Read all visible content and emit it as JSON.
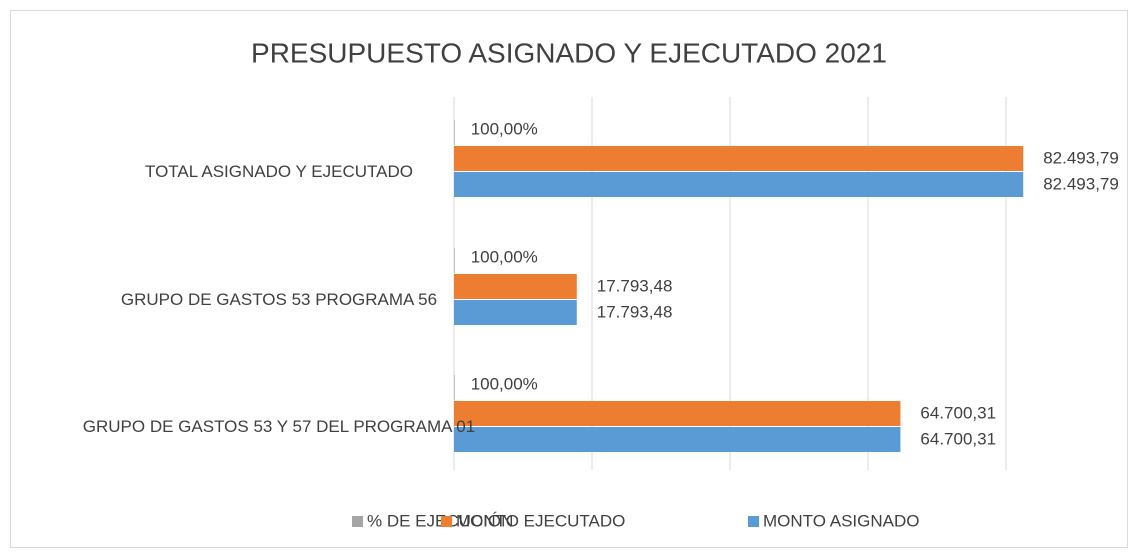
{
  "chart_data": {
    "type": "hbar",
    "title": "PRESUPUESTO ASIGNADO Y EJECUTADO 2021",
    "categories": [
      "TOTAL ASIGNADO Y EJECUTADO",
      "GRUPO DE GASTOS 53 PROGRAMA 56",
      "GRUPO DE GASTOS 53 Y 57 DEL PROGRAMA 01"
    ],
    "series": [
      {
        "name": "% DE EJECUCIÓN",
        "color": "#a5a5a5",
        "values": [
          100,
          100,
          100
        ],
        "value_labels": [
          "100,00%",
          "100,00%",
          "100,00%"
        ]
      },
      {
        "name": "MONTO EJECUTADO",
        "color": "#ed7d31",
        "values": [
          82493.79,
          17793.48,
          64700.31
        ],
        "value_labels": [
          "82.493,79",
          "17.793,48",
          "64.700,31"
        ]
      },
      {
        "name": "MONTO ASIGNADO",
        "color": "#5b9bd5",
        "values": [
          82493.79,
          17793.48,
          64700.31
        ],
        "value_labels": [
          "82.493,79",
          "17.793,48",
          "64.700,31"
        ]
      }
    ],
    "xlim": [
      0,
      80000
    ],
    "xticks": [
      0,
      20000,
      40000,
      60000,
      80000
    ],
    "grid": true,
    "legend": "bottom"
  }
}
